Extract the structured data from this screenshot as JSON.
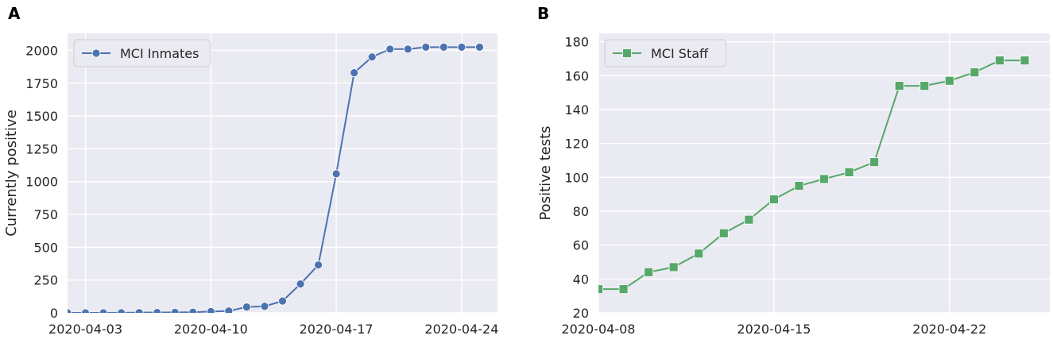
{
  "chart_data": [
    {
      "type": "line",
      "panel_label": "A",
      "title": "",
      "xlabel": "",
      "ylabel": "Currently positive",
      "ylim": [
        0,
        2130
      ],
      "xlim": [
        "2020-04-02",
        "2020-04-26"
      ],
      "yticks": [
        0,
        250,
        500,
        750,
        1000,
        1250,
        1500,
        1750,
        2000
      ],
      "xticks": [
        "2020-04-03",
        "2020-04-10",
        "2020-04-17",
        "2020-04-24"
      ],
      "grid": true,
      "legend_position": "top-left",
      "color": "#4c72b0",
      "marker": "circle",
      "series": [
        {
          "name": "MCI Inmates",
          "x": [
            "2020-04-02",
            "2020-04-03",
            "2020-04-04",
            "2020-04-05",
            "2020-04-06",
            "2020-04-07",
            "2020-04-08",
            "2020-04-09",
            "2020-04-10",
            "2020-04-11",
            "2020-04-12",
            "2020-04-13",
            "2020-04-14",
            "2020-04-15",
            "2020-04-16",
            "2020-04-17",
            "2020-04-18",
            "2020-04-19",
            "2020-04-20",
            "2020-04-21",
            "2020-04-22",
            "2020-04-23",
            "2020-04-24",
            "2020-04-25"
          ],
          "values": [
            0,
            0,
            0,
            1,
            2,
            3,
            4,
            5,
            10,
            14,
            45,
            50,
            90,
            220,
            365,
            1060,
            1830,
            1950,
            2010,
            2010,
            2025,
            2025,
            2025,
            2025
          ]
        }
      ]
    },
    {
      "type": "line",
      "panel_label": "B",
      "title": "",
      "xlabel": "",
      "ylabel": "Positive tests",
      "ylim": [
        20,
        185
      ],
      "xlim": [
        "2020-04-08",
        "2020-04-26"
      ],
      "yticks": [
        20,
        40,
        60,
        80,
        100,
        120,
        140,
        160,
        180
      ],
      "xticks": [
        "2020-04-08",
        "2020-04-15",
        "2020-04-22"
      ],
      "grid": true,
      "legend_position": "top-left",
      "color": "#55a868",
      "marker": "square",
      "series": [
        {
          "name": "MCI Staff",
          "x": [
            "2020-04-08",
            "2020-04-09",
            "2020-04-10",
            "2020-04-11",
            "2020-04-12",
            "2020-04-13",
            "2020-04-14",
            "2020-04-15",
            "2020-04-16",
            "2020-04-17",
            "2020-04-18",
            "2020-04-19",
            "2020-04-20",
            "2020-04-21",
            "2020-04-22",
            "2020-04-23",
            "2020-04-24",
            "2020-04-25"
          ],
          "values": [
            34,
            34,
            44,
            47,
            55,
            67,
            75,
            87,
            95,
            99,
            103,
            109,
            154,
            154,
            157,
            162,
            169,
            169
          ]
        }
      ]
    }
  ]
}
